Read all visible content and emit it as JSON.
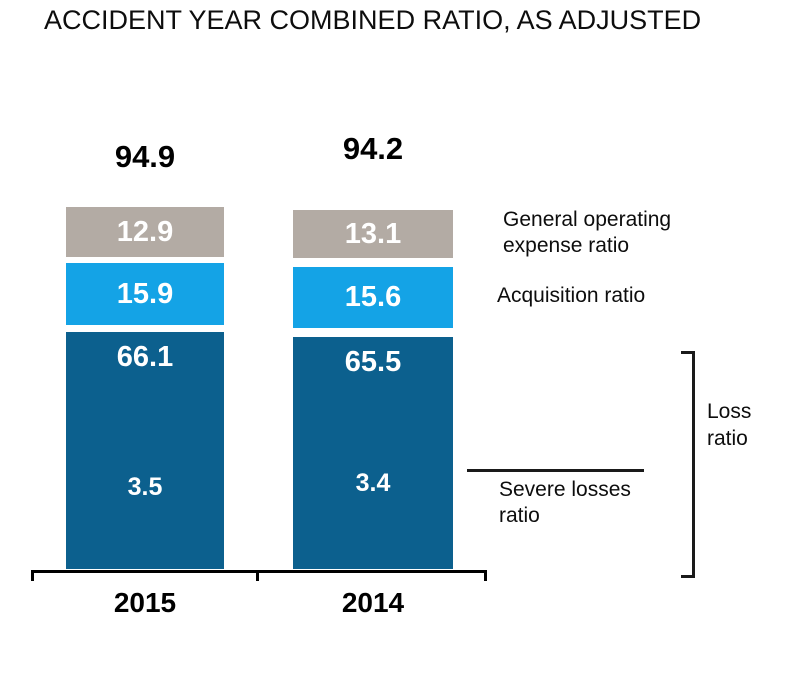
{
  "chart_data": {
    "type": "bar",
    "stacked": true,
    "title": "ACCIDENT YEAR COMBINED RATIO, AS ADJUSTED",
    "categories": [
      "2015",
      "2014"
    ],
    "totals": [
      94.9,
      94.2
    ],
    "series": [
      {
        "name": "Loss ratio",
        "color": "#0c608e",
        "values": [
          66.1,
          65.5
        ]
      },
      {
        "name": "Acquisition ratio",
        "color": "#14a3e6",
        "values": [
          15.9,
          15.6
        ]
      },
      {
        "name": "General operating expense ratio",
        "color": "#b3aba4",
        "values": [
          12.9,
          13.1
        ]
      }
    ],
    "annotations": [
      {
        "name": "Severe losses ratio",
        "within_series": "Loss ratio",
        "values": [
          3.5,
          3.4
        ]
      }
    ],
    "value_label_color": "#ffffff",
    "text_color": "#000000",
    "legend_position": "right",
    "grid": false,
    "ylim": [
      0,
      100
    ],
    "xlabel": "",
    "ylabel": ""
  }
}
